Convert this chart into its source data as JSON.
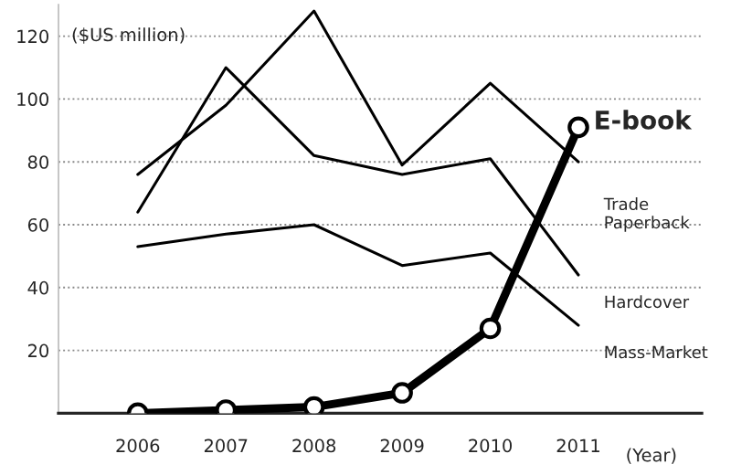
{
  "chart_data": {
    "type": "line",
    "ylabel": "($US million)",
    "xlabel": "(Year)",
    "x": [
      2006,
      2007,
      2008,
      2009,
      2010,
      2011
    ],
    "series": [
      {
        "name": "Trade Paperback",
        "color": "#000000",
        "values": [
          76,
          98,
          128,
          79,
          105,
          80
        ]
      },
      {
        "name": "Hardcover",
        "color": "#000000",
        "values": [
          64,
          110,
          82,
          76,
          81,
          44
        ]
      },
      {
        "name": "Mass-Market",
        "color": "#000000",
        "values": [
          53,
          57,
          60,
          47,
          51,
          28
        ]
      },
      {
        "name": "E-book",
        "color": "#000000",
        "marker": "circle",
        "values": [
          0,
          1,
          2,
          6.5,
          27,
          91
        ]
      }
    ],
    "xlim": [
      2005.1,
      2012.4
    ],
    "ylim": [
      0,
      130
    ],
    "xticks": [
      2006,
      2007,
      2008,
      2009,
      2010,
      2011
    ],
    "yticks": [
      20,
      40,
      60,
      80,
      100,
      120
    ],
    "grid": "y",
    "legend": false,
    "line_style": "solid"
  }
}
